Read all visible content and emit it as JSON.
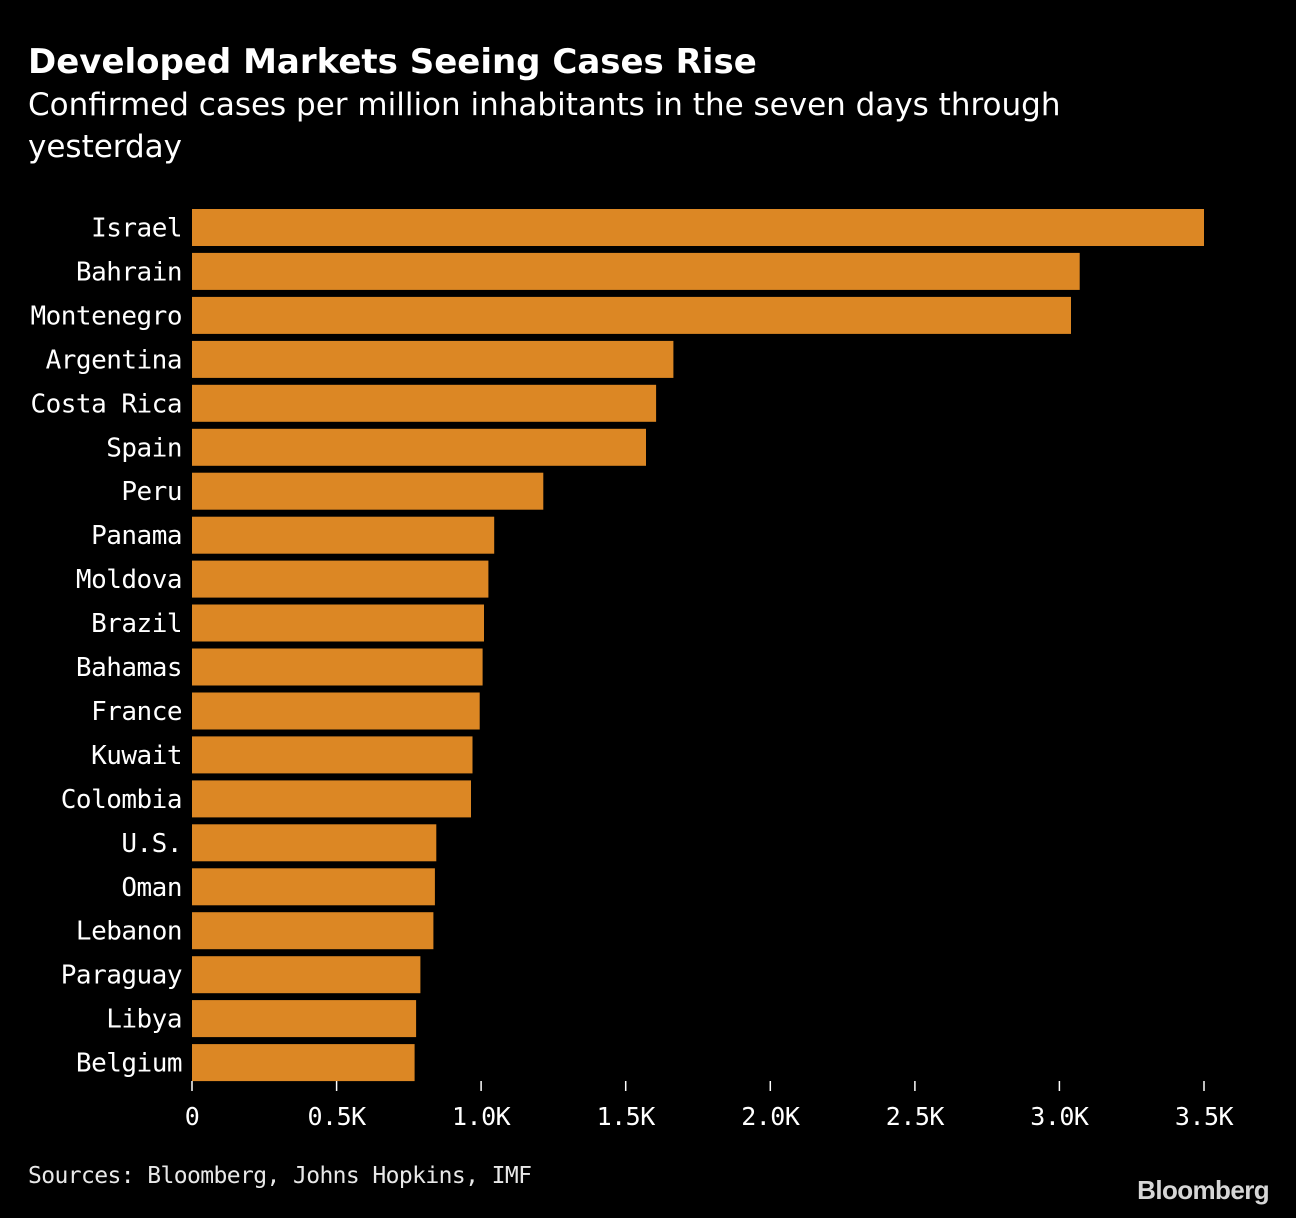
{
  "chart_data": {
    "type": "bar",
    "orientation": "horizontal",
    "title": "Developed Markets Seeing Cases Rise",
    "subtitle": "Confirmed cases per million inhabitants in the seven days through yesterday",
    "categories": [
      "Israel",
      "Bahrain",
      "Montenegro",
      "Argentina",
      "Costa Rica",
      "Spain",
      "Peru",
      "Panama",
      "Moldova",
      "Brazil",
      "Bahamas",
      "France",
      "Kuwait",
      "Colombia",
      "U.S.",
      "Oman",
      "Lebanon",
      "Paraguay",
      "Libya",
      "Belgium"
    ],
    "values": [
      3500,
      3070,
      3040,
      1665,
      1605,
      1570,
      1215,
      1045,
      1025,
      1010,
      1005,
      995,
      970,
      965,
      845,
      840,
      835,
      790,
      775,
      770
    ],
    "xlim": [
      0,
      3500
    ],
    "xticks": [
      0,
      500,
      1000,
      1500,
      2000,
      2500,
      3000,
      3500
    ],
    "xtick_labels": [
      "0",
      "0.5K",
      "1.0K",
      "1.5K",
      "2.0K",
      "2.5K",
      "3.0K",
      "3.5K"
    ],
    "xlabel": "",
    "ylabel": "",
    "grid": false,
    "bar_color": "#dc8724"
  },
  "source": "Sources: Bloomberg, Johns Hopkins, IMF",
  "brand": "Bloomberg",
  "colors": {
    "background": "#000000",
    "text": "#ffffff",
    "bar": "#dc8724"
  }
}
